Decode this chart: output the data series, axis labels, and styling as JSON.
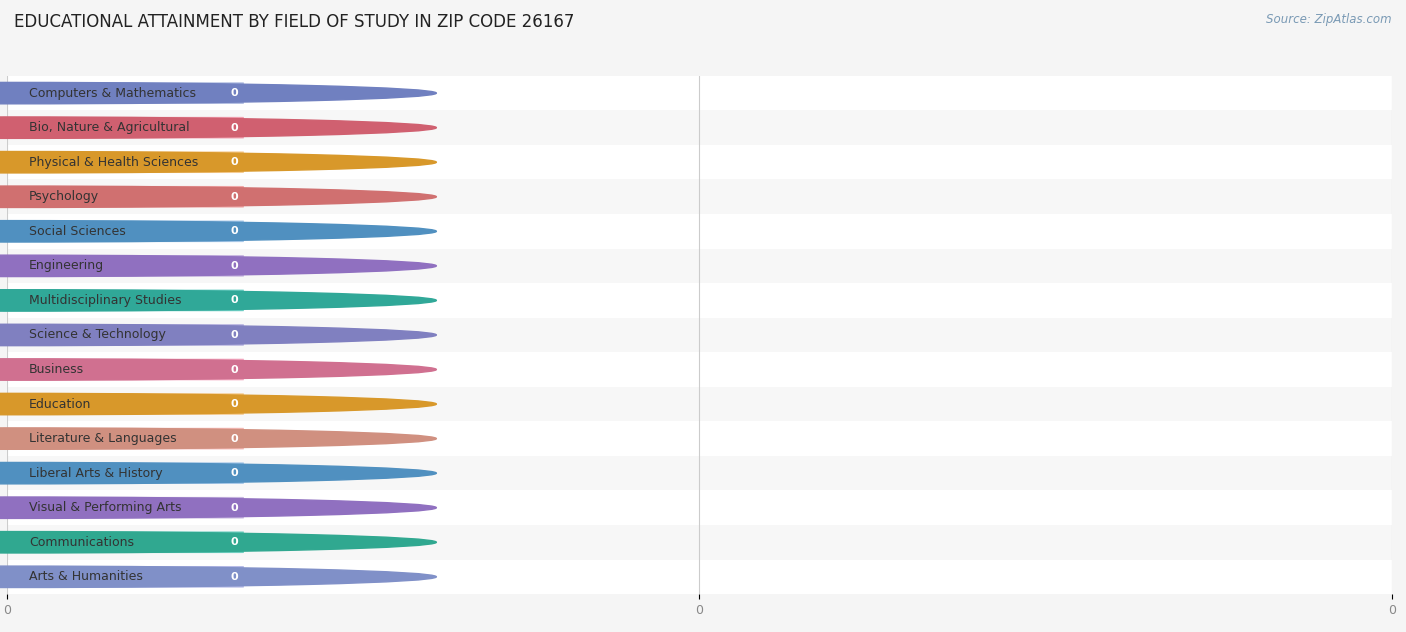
{
  "title": "EDUCATIONAL ATTAINMENT BY FIELD OF STUDY IN ZIP CODE 26167",
  "source": "Source: ZipAtlas.com",
  "categories": [
    "Computers & Mathematics",
    "Bio, Nature & Agricultural",
    "Physical & Health Sciences",
    "Psychology",
    "Social Sciences",
    "Engineering",
    "Multidisciplinary Studies",
    "Science & Technology",
    "Business",
    "Education",
    "Literature & Languages",
    "Liberal Arts & History",
    "Visual & Performing Arts",
    "Communications",
    "Arts & Humanities"
  ],
  "values": [
    0,
    0,
    0,
    0,
    0,
    0,
    0,
    0,
    0,
    0,
    0,
    0,
    0,
    0,
    0
  ],
  "bar_colors": [
    "#b0bce0",
    "#f0a0b0",
    "#f5cc94",
    "#f0a8a8",
    "#a8c8e8",
    "#c8b8e0",
    "#6ecec4",
    "#b8b4e0",
    "#f4a8c0",
    "#f5cc94",
    "#f4b8b4",
    "#a8c8e8",
    "#c8b8e0",
    "#6ecec0",
    "#b8bce8"
  ],
  "circle_colors": [
    "#7080c0",
    "#d06070",
    "#d8982a",
    "#d07070",
    "#5090c0",
    "#9070c0",
    "#30a898",
    "#8080c0",
    "#d07090",
    "#d8982a",
    "#d09080",
    "#5090c0",
    "#9070c0",
    "#30a890",
    "#8090c8"
  ],
  "background_color": "#f5f5f5",
  "row_bg_odd": "#f7f7f7",
  "row_bg_even": "#ffffff",
  "xlim_max": 1.0,
  "bar_height": 0.62,
  "title_fontsize": 12,
  "label_fontsize": 9,
  "value_fontsize": 8,
  "xtick_positions": [
    0.0,
    0.5,
    1.0
  ],
  "xtick_labels": [
    "0",
    "0",
    "0"
  ]
}
